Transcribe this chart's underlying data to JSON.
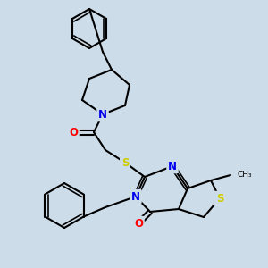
{
  "bg_color": "#ccdce8",
  "bond_color": "#000000",
  "bond_width": 1.5,
  "atom_colors": {
    "N": "#0000ee",
    "S": "#cccc00",
    "O": "#ff0000",
    "C": "#000000"
  },
  "font_size": 7.5,
  "figsize": [
    3.0,
    3.0
  ],
  "dpi": 100
}
